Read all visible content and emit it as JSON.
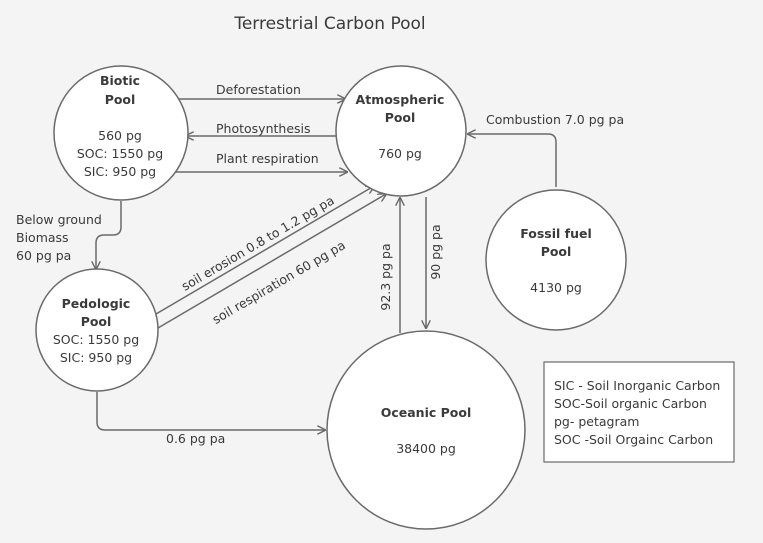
{
  "title": "Terrestrial Carbon Pool",
  "nodes": {
    "biotic": {
      "line1": "Biotic",
      "line2": "Pool",
      "value": "560 pg",
      "soc": "SOC: 1550 pg",
      "sic": "SIC: 950 pg"
    },
    "atmospheric": {
      "line1": "Atmospheric",
      "line2": "Pool",
      "value": "760 pg"
    },
    "fossil": {
      "line1": "Fossil fuel",
      "line2": "Pool",
      "value": "4130 pg"
    },
    "pedologic": {
      "line1": "Pedologic",
      "line2": "Pool",
      "soc": "SOC: 1550 pg",
      "sic": "SIC: 950 pg"
    },
    "oceanic": {
      "line1": "Oceanic Pool",
      "value": "38400 pg"
    }
  },
  "edges": {
    "deforestation": "Deforestation",
    "photosynthesis": "Photosynthesis",
    "plant_respiration": "Plant respiration",
    "combustion": "Combustion 7.0 pg pa",
    "below_ground_1": "Below ground",
    "below_ground_2": "Biomass",
    "below_ground_3": "60 pg pa",
    "soil_erosion": "soil erosion 0.8 to 1.2 pg pa",
    "soil_respiration": "soil respiration 60 pg pa",
    "ocean_to_atm": "92.3 pg pa",
    "atm_to_ocean": "90 pg pa",
    "pedo_to_ocean": "0.6 pg pa"
  },
  "legend": [
    "SIC - Soil Inorganic Carbon",
    "SOC-Soil organic Carbon",
    "pg- petagram",
    "SOC -Soil Orgainc Carbon"
  ]
}
